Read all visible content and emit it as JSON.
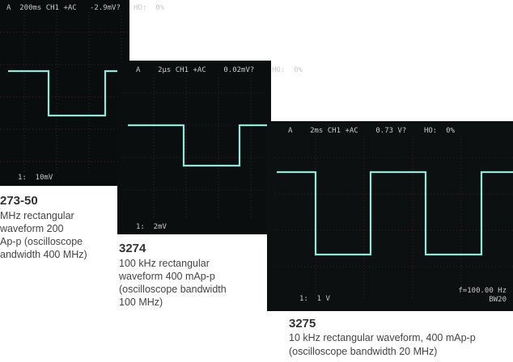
{
  "screens": [
    {
      "header": "A  200ms CH1 +AC   -2.9mV?   HO:  0%",
      "footer": "1:  10mV",
      "caption": {
        "model": "273-50",
        "lines": [
          "MHz rectangular",
          "waveform 200",
          "Ap-p (oscilloscope",
          "andwidth 400 MHz)"
        ]
      }
    },
    {
      "header": "A    2µs CH1 +AC    0.02mV?    HO:  0%",
      "footer": "1:  2mV",
      "caption": {
        "model": "3274",
        "lines": [
          "100 kHz rectangular",
          "waveform 400 mAp-p",
          "(oscilloscope bandwidth",
          "100 MHz)"
        ]
      }
    },
    {
      "header": "A    2ms CH1 +AC    0.73 V?    HO:  0%",
      "footer": "1:  1 V",
      "readout": "f=100.00 Hz",
      "bandwidth": "BW20",
      "caption": {
        "model": "3275",
        "lines": [
          "10 kHz rectangular waveform, 400 mAp-p",
          "(oscilloscope bandwidth 20 MHz)"
        ]
      }
    }
  ]
}
